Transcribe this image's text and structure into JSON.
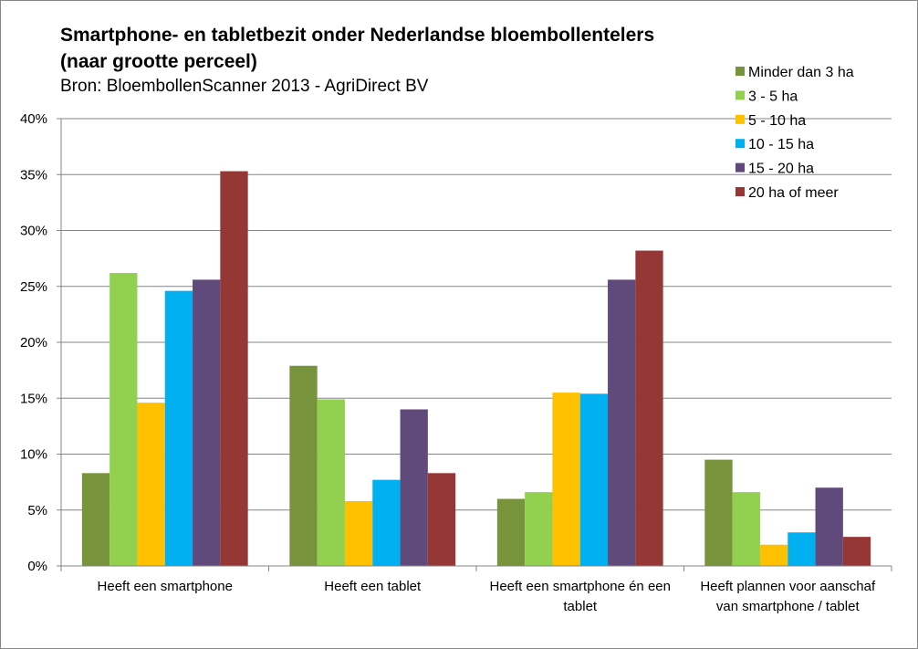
{
  "chart_data": {
    "type": "bar",
    "title_line1": "Smartphone- en tabletbezit onder Nederlandse bloembollentelers",
    "title_line2": "(naar grootte perceel)",
    "subtitle": "Bron: BloembollenScanner 2013 - AgriDirect BV",
    "xlabel": "",
    "ylabel": "",
    "ylim": [
      0,
      40
    ],
    "yticks": [
      "0%",
      "5%",
      "10%",
      "15%",
      "20%",
      "25%",
      "30%",
      "35%",
      "40%"
    ],
    "grid": true,
    "legend_position": "top-right",
    "categories": [
      [
        "Heeft een smartphone"
      ],
      [
        "Heeft een tablet"
      ],
      [
        "Heeft een smartphone én een",
        "tablet"
      ],
      [
        "Heeft plannen voor aanschaf",
        "van smartphone / tablet"
      ]
    ],
    "series": [
      {
        "name": "Minder dan 3 ha",
        "color": "#77933C",
        "values": [
          8.3,
          17.9,
          6.0,
          9.5
        ]
      },
      {
        "name": "3 - 5 ha",
        "color": "#92D050",
        "values": [
          26.2,
          14.9,
          6.6,
          6.6
        ]
      },
      {
        "name": "5 - 10 ha",
        "color": "#FFC000",
        "values": [
          14.6,
          5.8,
          15.5,
          1.9
        ]
      },
      {
        "name": "10 - 15 ha",
        "color": "#00B0F0",
        "values": [
          24.6,
          7.7,
          15.4,
          3.0
        ]
      },
      {
        "name": "15 - 20 ha",
        "color": "#604A7B",
        "values": [
          25.6,
          14.0,
          25.6,
          7.0
        ]
      },
      {
        "name": "20 ha of meer",
        "color": "#953735",
        "values": [
          35.3,
          8.3,
          28.2,
          2.6
        ]
      }
    ]
  }
}
